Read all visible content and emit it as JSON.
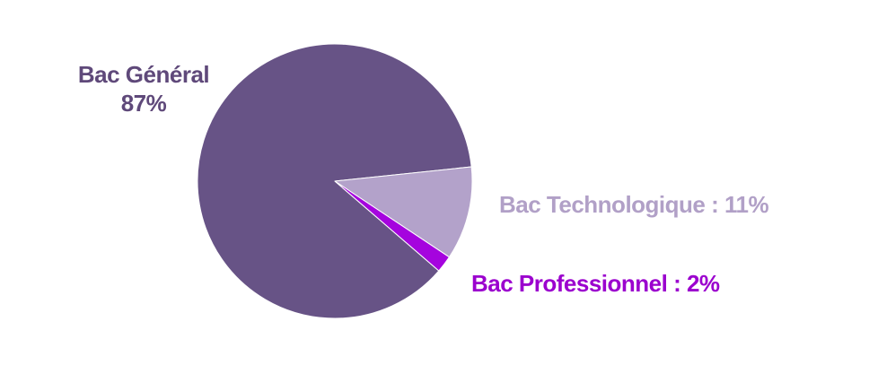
{
  "chart_data": {
    "type": "pie",
    "title": "",
    "categories": [
      "Bac Général",
      "Bac Technologique",
      "Bac Professionnel"
    ],
    "values": [
      87,
      11,
      2
    ],
    "value_unit": "%",
    "colors": [
      "#675386",
      "#B3A2CA",
      "#A504DE"
    ],
    "legend_position": "none",
    "gridlines": false,
    "labels": [
      {
        "lines": [
          "Bac Général",
          "87%"
        ],
        "color": "#5F497A"
      },
      {
        "text": "Bac Technologique : 11%",
        "color": "#B1A0C7"
      },
      {
        "text": "Bac Professionnel : 2%",
        "color": "#9B00CE"
      }
    ]
  }
}
